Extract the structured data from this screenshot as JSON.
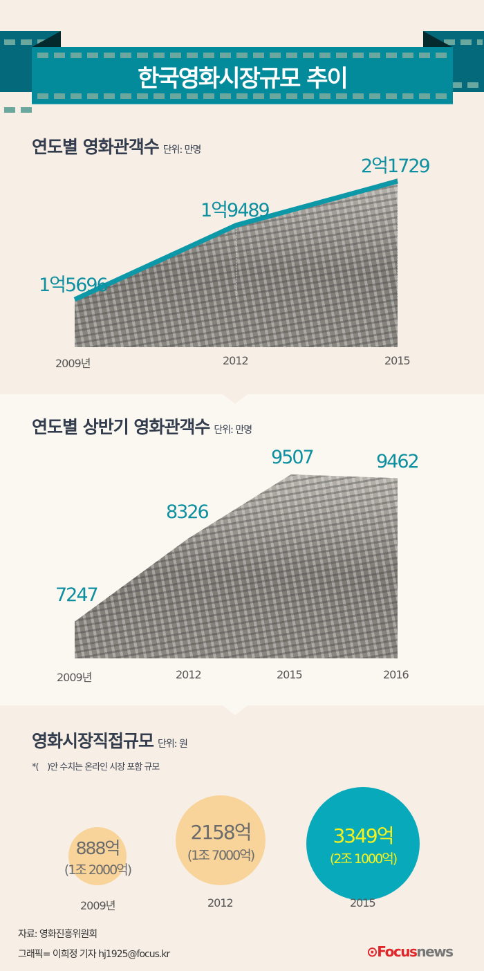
{
  "header": {
    "title": "한국영화시장규모 추이"
  },
  "colors": {
    "teal": "#038b9c",
    "line": "#0d98a8",
    "peach": "#f8d49a",
    "yellow": "#f4f11c",
    "background": "#f7efe6"
  },
  "chart_data": [
    {
      "type": "line",
      "title": "연도별 영화관객수",
      "unit": "단위: 만명",
      "categories": [
        "2009년",
        "2012",
        "2015"
      ],
      "values": [
        15696,
        19489,
        21729
      ],
      "data_labels": [
        "1억5696",
        "1억9489",
        "2억1729"
      ]
    },
    {
      "type": "line",
      "title": "연도별 상반기 영화관객수",
      "unit": "단위: 만명",
      "categories": [
        "2009년",
        "2012",
        "2015",
        "2016"
      ],
      "values": [
        7247,
        8326,
        9507,
        9462
      ],
      "data_labels": [
        "7247",
        "8326",
        "9507",
        "9462"
      ]
    },
    {
      "type": "bubble",
      "title": "영화시장직접규모",
      "unit": "단위: 원",
      "note": "*(    )안 수치는 온라인 시장 포함 규모",
      "categories": [
        "2009년",
        "2012",
        "2015"
      ],
      "values": [
        888,
        2158,
        3349
      ],
      "data_labels": [
        "888억",
        "2158억",
        "3349억"
      ],
      "secondary_labels": [
        "(1조 2000억)",
        "(1조 7000억)",
        "(2조 1000억)"
      ]
    }
  ],
  "footer": {
    "source": "자료: 영화진흥위원회",
    "credit": "그래픽= 이희정 기자 hj1925@focus.kr",
    "logo": "Focusnews"
  }
}
